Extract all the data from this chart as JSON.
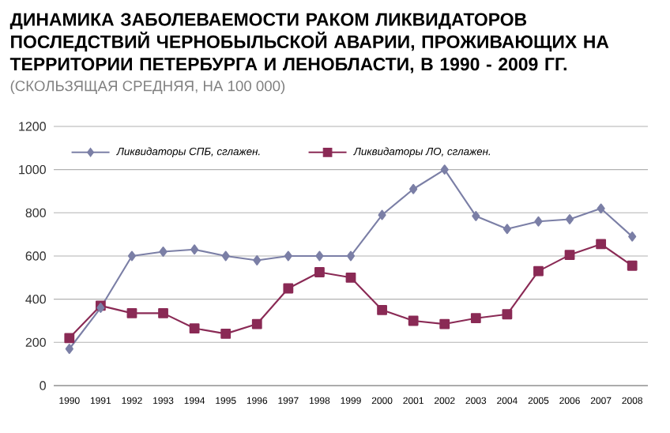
{
  "chart_data": {
    "type": "line",
    "title": "ДИНАМИКА ЗАБОЛЕВАЕМОСТИ РАКОМ ЛИКВИДАТОРОВ ПОСЛЕДСТВИЙ ЧЕРНОБЫЛЬСКОЙ АВАРИИ, ПРОЖИВАЮЩИХ НА ТЕРРИТОРИИ ПЕТЕРБУРГА И ЛЕНОБЛАСТИ, В 1990 - 2009 ГГ.",
    "subtitle": "(СКОЛЬЗЯЩАЯ СРЕДНЯЯ, НА 100 000)",
    "categories": [
      "1990",
      "1991",
      "1992",
      "1993",
      "1994",
      "1995",
      "1996",
      "1997",
      "1998",
      "1999",
      "2000",
      "2001",
      "2002",
      "2003",
      "2004",
      "2005",
      "2006",
      "2007",
      "2008"
    ],
    "series": [
      {
        "name": "Ликвидаторы СПБ, сглажен.",
        "color": "#7b7fa6",
        "marker": "diamond",
        "values": [
          170,
          360,
          600,
          620,
          630,
          600,
          580,
          600,
          600,
          600,
          790,
          910,
          1000,
          785,
          725,
          760,
          770,
          820,
          690
        ]
      },
      {
        "name": "Ликвидаторы ЛО, сглажен.",
        "color": "#8a2a55",
        "marker": "square",
        "values": [
          220,
          370,
          335,
          335,
          265,
          240,
          285,
          450,
          525,
          500,
          350,
          300,
          285,
          312,
          330,
          530,
          605,
          655,
          555
        ]
      }
    ],
    "ylim": [
      0,
      1200
    ],
    "yticks": [
      0,
      200,
      400,
      600,
      800,
      1000,
      1200
    ],
    "grid": "y",
    "legend": "top left"
  }
}
